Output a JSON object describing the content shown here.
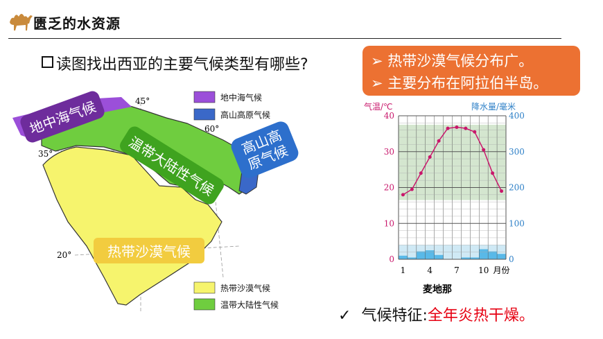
{
  "header": {
    "title": "匮乏的水资源",
    "icon": "camel-icon"
  },
  "question": "读图找出西亚的主要气候类型有哪些?",
  "info_box": {
    "lines": [
      "➢  热带沙漠气候分布广。",
      "➢  主要分布在阿拉伯半岛。"
    ],
    "bg": "#ec7132"
  },
  "map": {
    "longitudes": [
      "45°",
      "60°"
    ],
    "latitudes": [
      "35°",
      "20°"
    ],
    "tags": {
      "mediterranean": "地中海气候",
      "temperate": "温带大陆性气候",
      "highland_line1": "高山高",
      "highland_line2": "原气候",
      "desert": "热带沙漠气候"
    },
    "legend_top": [
      {
        "label": "地中海气候",
        "color": "#9b4fd9"
      },
      {
        "label": "高山高原气候",
        "color": "#3a68c8"
      }
    ],
    "legend_bottom": [
      {
        "label": "热带沙漠气候",
        "color": "#f6f46d"
      },
      {
        "label": "温带大陆性气候",
        "color": "#6fcd3f"
      }
    ]
  },
  "chart_data": {
    "type": "line",
    "title": "麦地那",
    "ylabel_left": "气温/℃",
    "ylabel_right": "降水量/毫米",
    "xlabel_suffix": "月份",
    "x": [
      1,
      2,
      3,
      4,
      5,
      6,
      7,
      8,
      9,
      10,
      11,
      12
    ],
    "x_tick_labels": [
      "1",
      "4",
      "7",
      "10"
    ],
    "left_ticks": [
      "0",
      "10",
      "20",
      "30",
      "40"
    ],
    "right_ticks": [
      "0",
      "100",
      "200",
      "300",
      "400"
    ],
    "ylim_left": [
      0,
      40
    ],
    "ylim_right": [
      0,
      400
    ],
    "series": [
      {
        "name": "气温",
        "type": "line",
        "axis": "left",
        "color": "#c8176b",
        "values": [
          18,
          19.5,
          24,
          28.5,
          33,
          36.5,
          36.8,
          36.5,
          35.5,
          30.5,
          24,
          19
        ]
      },
      {
        "name": "降水量",
        "type": "bar",
        "axis": "right",
        "color": "#59b9e8",
        "values": [
          10,
          5,
          22,
          25,
          12,
          0,
          0,
          5,
          5,
          28,
          22,
          15
        ]
      }
    ],
    "grid": true,
    "shaded_band_left": [
      16.5,
      37.5
    ]
  },
  "conclusion": {
    "check": "✓",
    "prefix": "气候特征:",
    "highlight": "全年炎热干燥。"
  }
}
